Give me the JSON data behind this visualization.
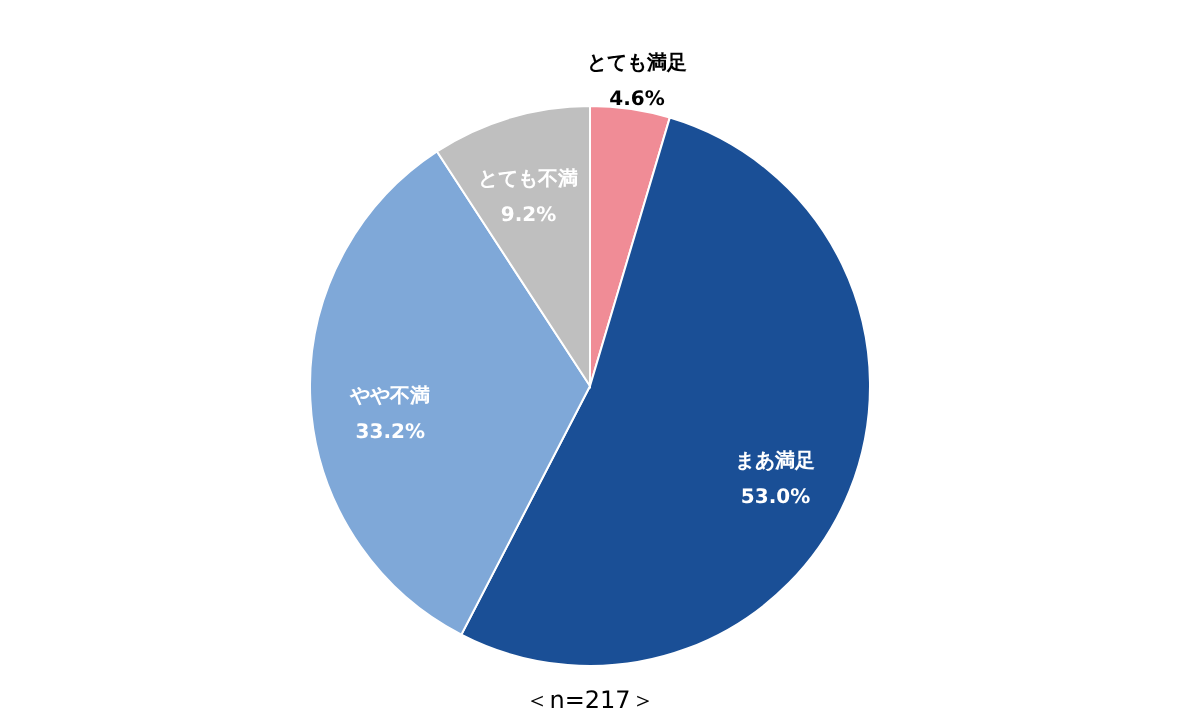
{
  "chart_data": {
    "type": "pie",
    "categories": [
      "とても満足",
      "まあ満足",
      "やや不満",
      "とても不満"
    ],
    "values": [
      4.6,
      53.0,
      33.2,
      9.2
    ],
    "colors": [
      "#f08c96",
      "#1a4f96",
      "#7fa8d8",
      "#bfbfbf"
    ],
    "value_labels": [
      "4.6%",
      "53.0%",
      "33.2%",
      "9.2%"
    ],
    "annotations": [
      "＜n=217＞"
    ]
  }
}
